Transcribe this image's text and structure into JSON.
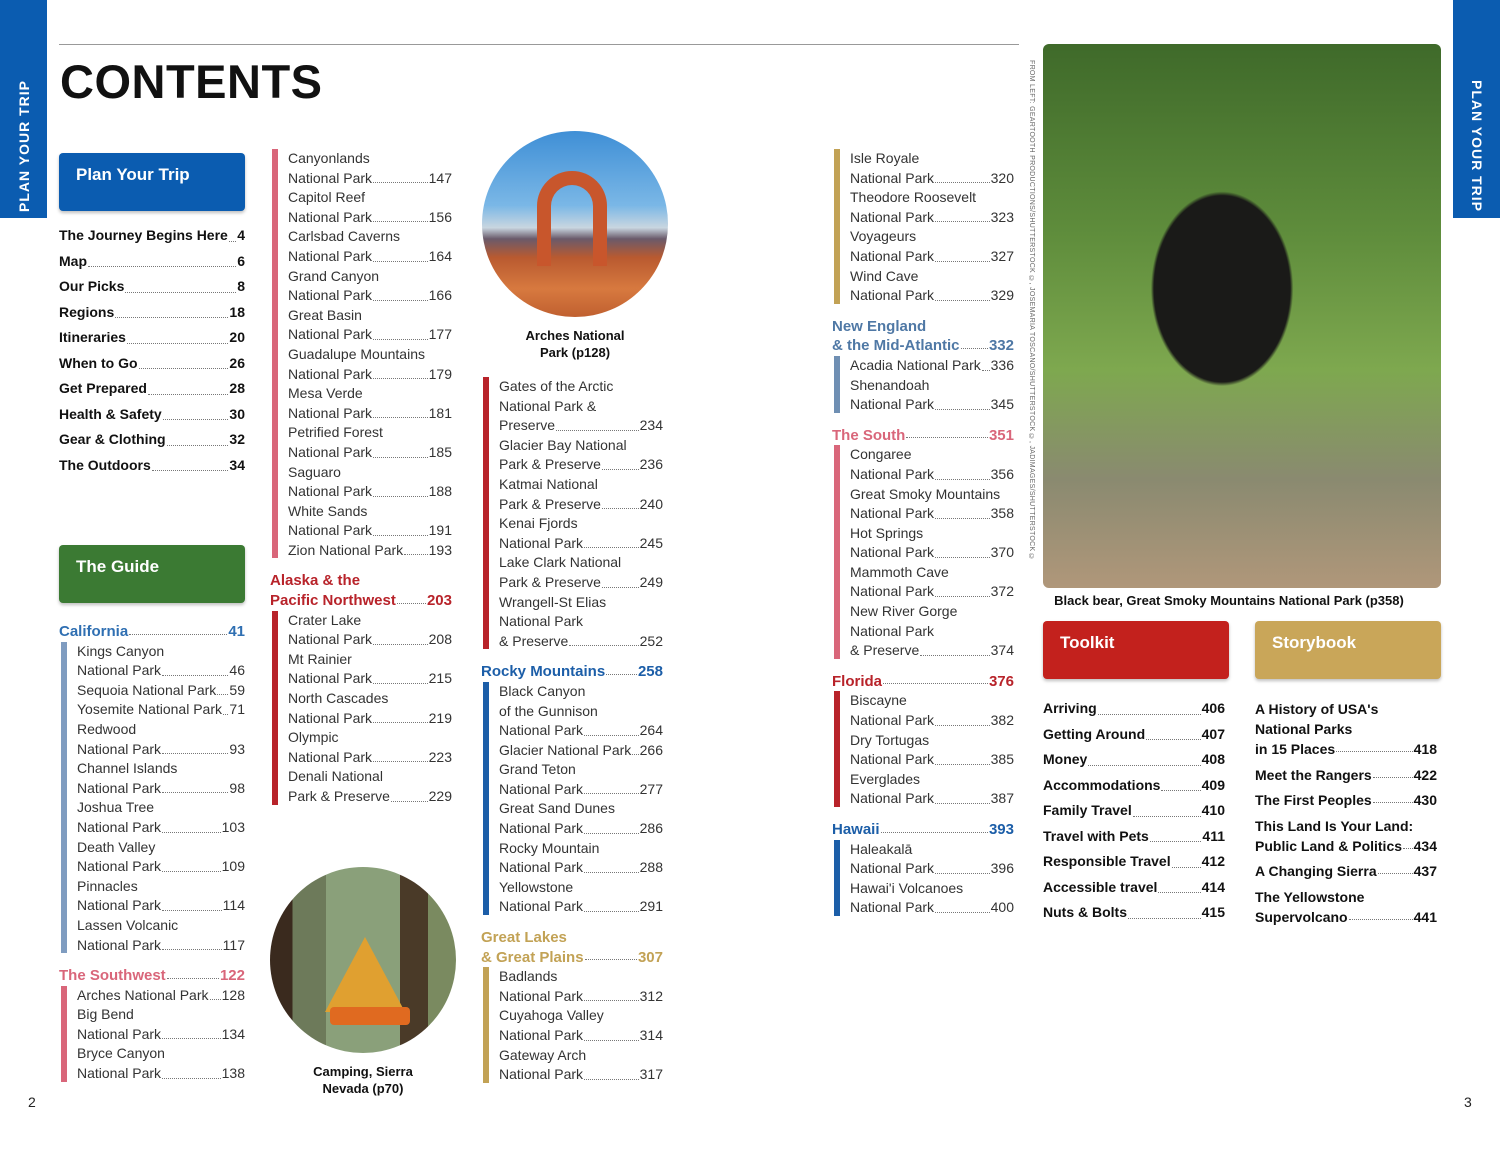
{
  "side_tab": "PLAN YOUR TRIP",
  "title": "CONTENTS",
  "page_left": "2",
  "page_right": "3",
  "credit": "FROM LEFT: GEARTOOTH PRODUCTIONS/SHUTTERSTOCK ©, JOSEMARIA TOSCANO/SHUTTERSTOCK ©, JADIMAGES/SHUTTERSTOCK ©",
  "captions": {
    "arches": "Arches National\nPark (p128)",
    "camping": "Camping, Sierra\nNevada (p70)",
    "bear": "Black bear, Great Smoky Mountains National Park (p358)"
  },
  "colors": {
    "plan": "#0b5cb0",
    "guide": "#3b7a33",
    "toolkit": "#c3211d",
    "storybook": "#c9a659"
  },
  "plan": {
    "label": "Plan Your Trip",
    "items": [
      [
        "The Journey Begins Here",
        "4"
      ],
      [
        "Map",
        "6"
      ],
      [
        "Our Picks",
        "8"
      ],
      [
        "Regions",
        "18"
      ],
      [
        "Itineraries",
        "20"
      ],
      [
        "When to Go",
        "26"
      ],
      [
        "Get Prepared",
        "28"
      ],
      [
        "Health & Safety",
        "30"
      ],
      [
        "Gear & Clothing",
        "32"
      ],
      [
        "The Outdoors",
        "34"
      ]
    ]
  },
  "guide": {
    "label": "The Guide"
  },
  "toolkit": {
    "label": "Toolkit",
    "items": [
      [
        "Arriving",
        "406"
      ],
      [
        "Getting Around",
        "407"
      ],
      [
        "Money",
        "408"
      ],
      [
        "Accommodations",
        "409"
      ],
      [
        "Family Travel",
        "410"
      ],
      [
        "Travel with Pets",
        "411"
      ],
      [
        "Responsible Travel",
        "412"
      ],
      [
        "Accessible travel",
        "414"
      ],
      [
        "Nuts & Bolts",
        "415"
      ]
    ]
  },
  "storybook": {
    "label": "Storybook",
    "items": [
      [
        [
          "A History of USA's",
          "National Parks",
          "in 15 Places"
        ],
        "418"
      ],
      [
        [
          "Meet the Rangers"
        ],
        "422"
      ],
      [
        [
          "The First Peoples"
        ],
        "430"
      ],
      [
        [
          "This Land Is Your Land:",
          "Public Land & Politics"
        ],
        "434"
      ],
      [
        [
          "A Changing Sierra"
        ],
        "437"
      ],
      [
        [
          "The Yellowstone",
          "Supervolcano"
        ],
        "441"
      ]
    ]
  },
  "guide_columns": [
    [
      {
        "heading": [
          "California"
        ],
        "page": "41",
        "hc": "#2f6fb2",
        "bc": "#7f9cc0",
        "items": [
          [
            [
              "Kings Canyon",
              "National Park"
            ],
            "46"
          ],
          [
            [
              "Sequoia National Park"
            ],
            "59"
          ],
          [
            [
              "Yosemite National Park"
            ],
            "71"
          ],
          [
            [
              "Redwood",
              "National Park"
            ],
            "93"
          ],
          [
            [
              "Channel Islands",
              "National Park"
            ],
            "98"
          ],
          [
            [
              "Joshua Tree",
              "National Park"
            ],
            "103"
          ],
          [
            [
              "Death Valley",
              "National Park"
            ],
            "109"
          ],
          [
            [
              "Pinnacles",
              "National Park"
            ],
            "114"
          ],
          [
            [
              "Lassen Volcanic",
              "National Park"
            ],
            "117"
          ]
        ]
      },
      {
        "heading": [
          "The Southwest"
        ],
        "page": "122",
        "hc": "#d9667a",
        "bc": "#d9667a",
        "items": [
          [
            [
              "Arches National Park"
            ],
            "128"
          ],
          [
            [
              "Big Bend",
              "National Park"
            ],
            "134"
          ],
          [
            [
              "Bryce Canyon",
              "National Park"
            ],
            "138"
          ]
        ]
      }
    ],
    [
      {
        "heading": [],
        "page": "",
        "hc": "#d9667a",
        "bc": "#d9667a",
        "items": [
          [
            [
              "Canyonlands",
              "National Park"
            ],
            "147"
          ],
          [
            [
              "Capitol Reef",
              "National Park"
            ],
            "156"
          ],
          [
            [
              "Carlsbad Caverns",
              "National Park"
            ],
            "164"
          ],
          [
            [
              "Grand Canyon",
              "National Park"
            ],
            "166"
          ],
          [
            [
              "Great Basin",
              "National Park"
            ],
            "177"
          ],
          [
            [
              "Guadalupe Mountains",
              "National Park"
            ],
            "179"
          ],
          [
            [
              "Mesa Verde",
              "National Park"
            ],
            "181"
          ],
          [
            [
              "Petrified Forest",
              "National Park"
            ],
            "185"
          ],
          [
            [
              "Saguaro",
              "National Park"
            ],
            "188"
          ],
          [
            [
              "White Sands",
              "National Park"
            ],
            "191"
          ],
          [
            [
              "Zion National Park"
            ],
            "193"
          ]
        ]
      },
      {
        "heading": [
          "Alaska & the",
          "Pacific Northwest"
        ],
        "page": "203",
        "hc": "#b8232a",
        "bc": "#b8232a",
        "items": [
          [
            [
              "Crater Lake",
              "National Park"
            ],
            "208"
          ],
          [
            [
              "Mt Rainier",
              "National Park"
            ],
            "215"
          ],
          [
            [
              "North Cascades",
              "National Park"
            ],
            "219"
          ],
          [
            [
              "Olympic",
              "National Park"
            ],
            "223"
          ],
          [
            [
              "Denali National",
              "Park & Preserve"
            ],
            "229"
          ]
        ]
      }
    ],
    [
      {
        "heading": [],
        "page": "",
        "hc": "#b8232a",
        "bc": "#b8232a",
        "items": [
          [
            [
              "Gates of the Arctic",
              "National Park &",
              "Preserve"
            ],
            "234"
          ],
          [
            [
              "Glacier Bay National",
              "Park & Preserve"
            ],
            "236"
          ],
          [
            [
              "Katmai National",
              "Park & Preserve"
            ],
            "240"
          ],
          [
            [
              "Kenai Fjords",
              "National Park"
            ],
            "245"
          ],
          [
            [
              "Lake Clark National",
              "Park & Preserve"
            ],
            "249"
          ],
          [
            [
              "Wrangell-St Elias",
              "National Park",
              "& Preserve"
            ],
            "252"
          ]
        ]
      },
      {
        "heading": [
          "Rocky Mountains"
        ],
        "page": "258",
        "hc": "#1c5ea8",
        "bc": "#1c5ea8",
        "items": [
          [
            [
              "Black Canyon",
              "of the Gunnison",
              "National Park"
            ],
            "264"
          ],
          [
            [
              "Glacier National Park"
            ],
            "266"
          ],
          [
            [
              "Grand Teton",
              "National Park"
            ],
            "277"
          ],
          [
            [
              "Great Sand Dunes",
              "National Park"
            ],
            "286"
          ],
          [
            [
              "Rocky Mountain",
              "National Park"
            ],
            "288"
          ],
          [
            [
              "Yellowstone",
              "National Park"
            ],
            "291"
          ]
        ]
      },
      {
        "heading": [
          "Great Lakes",
          "& Great Plains"
        ],
        "page": "307",
        "hc": "#c2a255",
        "bc": "#c2a255",
        "items": [
          [
            [
              "Badlands",
              "National Park"
            ],
            "312"
          ],
          [
            [
              "Cuyahoga Valley",
              "National Park"
            ],
            "314"
          ],
          [
            [
              "Gateway Arch",
              "National Park"
            ],
            "317"
          ]
        ]
      }
    ],
    [
      {
        "heading": [],
        "page": "",
        "hc": "#c2a255",
        "bc": "#c2a255",
        "items": [
          [
            [
              "Isle Royale",
              "National Park"
            ],
            "320"
          ],
          [
            [
              "Theodore Roosevelt",
              "National Park"
            ],
            "323"
          ],
          [
            [
              "Voyageurs",
              "National Park"
            ],
            "327"
          ],
          [
            [
              "Wind Cave",
              "National Park"
            ],
            "329"
          ]
        ]
      },
      {
        "heading": [
          "New England",
          "& the Mid-Atlantic"
        ],
        "page": "332",
        "hc": "#4f78a5",
        "bc": "#6f8fb3",
        "items": [
          [
            [
              "Acadia National Park"
            ],
            "336"
          ],
          [
            [
              "Shenandoah",
              "National Park"
            ],
            "345"
          ]
        ]
      },
      {
        "heading": [
          "The South"
        ],
        "page": "351",
        "hc": "#d9667a",
        "bc": "#d9667a",
        "items": [
          [
            [
              "Congaree",
              "National Park"
            ],
            "356"
          ],
          [
            [
              "Great Smoky Mountains",
              "National Park"
            ],
            "358"
          ],
          [
            [
              "Hot Springs",
              "National Park"
            ],
            "370"
          ],
          [
            [
              "Mammoth Cave",
              "National Park"
            ],
            "372"
          ],
          [
            [
              "New River Gorge",
              "National Park",
              "& Preserve"
            ],
            "374"
          ]
        ]
      },
      {
        "heading": [
          "Florida"
        ],
        "page": "376",
        "hc": "#b8232a",
        "bc": "#b8232a",
        "items": [
          [
            [
              "Biscayne",
              "National Park"
            ],
            "382"
          ],
          [
            [
              "Dry Tortugas",
              "National Park"
            ],
            "385"
          ],
          [
            [
              "Everglades",
              "National Park"
            ],
            "387"
          ]
        ]
      },
      {
        "heading": [
          "Hawaii"
        ],
        "page": "393",
        "hc": "#1c5ea8",
        "bc": "#1c5ea8",
        "items": [
          [
            [
              "Haleakalā",
              "National Park"
            ],
            "396"
          ],
          [
            [
              "Hawai'i Volcanoes",
              "National Park"
            ],
            "400"
          ]
        ]
      }
    ]
  ]
}
